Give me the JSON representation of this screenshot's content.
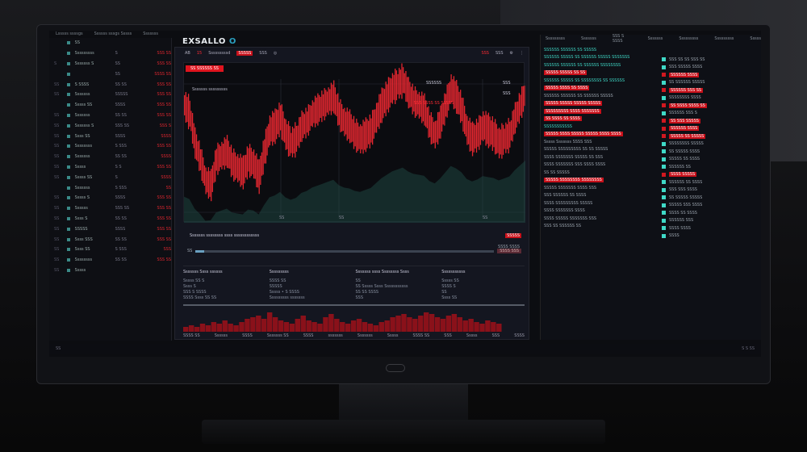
{
  "app": {
    "title": "EXSALLO",
    "title_mark": "O"
  },
  "topbar": [
    "Lsssss ssssgs",
    "Ssssss sssgs Sssss",
    "Sssssss"
  ],
  "toolbar": {
    "pair": "AB",
    "pair_change": "15",
    "mode": "Sssssssssd",
    "price_tag": "SSSSS",
    "interval": "SSS",
    "right1": "SSS",
    "right2": "SSS"
  },
  "chart": {
    "tag": "SS SSSSSS SS",
    "annotation": "Sssssss sssssssss",
    "legend": "SSSSSS",
    "legend_val": "SSS",
    "legend_red": "SSS SSSS  SS SSSSS",
    "price_label": "SSS",
    "accent": "#e0262f",
    "volume_color": "#1f4a44",
    "price_series": [
      96,
      92,
      78,
      70,
      60,
      58,
      70,
      72,
      74,
      68,
      66,
      64,
      70,
      68,
      62,
      74,
      84,
      86,
      90,
      82,
      78,
      80,
      86,
      88,
      92,
      94,
      96,
      98,
      100,
      92,
      88,
      86,
      82,
      80,
      82,
      84,
      90,
      96,
      100,
      104,
      106,
      108,
      102,
      98,
      96,
      94,
      86,
      82,
      88,
      96,
      104,
      100,
      94,
      84,
      80,
      82,
      86,
      84,
      82,
      78,
      80,
      82,
      90,
      96,
      102
    ],
    "x_ticks": [
      "SS",
      "SS",
      "SS"
    ]
  },
  "info": {
    "label": "Sssssss ssssssss ssss ssssssssssss",
    "badge": "SSSSS",
    "sub": "SSSS SSSS",
    "progress_pct": 3,
    "progress_label": "SS",
    "btn": "SSSS SSS"
  },
  "table": {
    "columns": [
      {
        "h": "Sssssss Ssss ssssss",
        "rows": [
          "Sssss  SS  S",
          "Ssss   S",
          "SSS S SSSS",
          "SSSS Ssss SS SS"
        ]
      },
      {
        "h": "Sssssssss",
        "rows": [
          "SSSS  SS",
          "SSSSS",
          "Sssss • S SSSS",
          "Sssssssss sssssss"
        ]
      },
      {
        "h": "Sssssss ssss Ssssssss Ssss",
        "rows": [
          "SS",
          "SS Sssss Ssss Sssssssssss",
          "SS SS SSSS",
          "SSS"
        ]
      },
      {
        "h": "Sssssssssss",
        "rows": [
          "Sssss  SS",
          "SSSS  S",
          "SS",
          "Ssss  SS"
        ]
      }
    ]
  },
  "volume": {
    "values": [
      3,
      4,
      3,
      5,
      4,
      6,
      5,
      7,
      5,
      4,
      6,
      8,
      9,
      10,
      8,
      12,
      9,
      7,
      6,
      5,
      8,
      10,
      7,
      6,
      5,
      9,
      11,
      8,
      6,
      5,
      7,
      8,
      6,
      5,
      4,
      6,
      7,
      9,
      10,
      11,
      9,
      8,
      10,
      12,
      11,
      9,
      8,
      10,
      11,
      9,
      7,
      8,
      6,
      5,
      7,
      6,
      5
    ],
    "labels": [
      "SSSS SS",
      "Ssssss",
      "SSSS",
      "Sssssss SS",
      "SSSS",
      "sssssss",
      "Sssssss",
      "Sssss",
      "SSSS SS",
      "SSS",
      "Sssss",
      "SSS",
      "SSSS"
    ]
  },
  "sidebar": {
    "rows": [
      {
        "n": "",
        "label": "SS",
        "v": "",
        "r": ""
      },
      {
        "n": "",
        "label": "Sssssssss",
        "v": "S",
        "r": "SSS SS"
      },
      {
        "n": "S",
        "label": "Sssssss S",
        "v": "SS",
        "r": "SSS SS"
      },
      {
        "n": "",
        "label": "",
        "v": "SS",
        "r": "SSSS SS"
      },
      {
        "n": "SS",
        "label": "S SSSS",
        "v": "SS SS",
        "r": "SSS SS"
      },
      {
        "n": "SS",
        "label": "Sssssss",
        "v": "SSSSS",
        "r": "SSS SS"
      },
      {
        "n": "",
        "label": "Sssss SS",
        "v": "SSSS",
        "r": "SSS SS"
      },
      {
        "n": "SS",
        "label": "Sssssss",
        "v": "SS SS",
        "r": "SSS SS"
      },
      {
        "n": "SS",
        "label": "Sssssss S",
        "v": "SSS SS",
        "r": "SSS S"
      },
      {
        "n": "SS",
        "label": "Ssss SS",
        "v": "SSSS",
        "r": "SSSS"
      },
      {
        "n": "SS",
        "label": "Ssssssss",
        "v": "S SSS",
        "r": "SSS SS"
      },
      {
        "n": "SS",
        "label": "Sssssss",
        "v": "SS SS",
        "r": "SSSS"
      },
      {
        "n": "SS",
        "label": "Sssss",
        "v": "S S",
        "r": "SSS SS"
      },
      {
        "n": "SS",
        "label": "Sssss SS",
        "v": "S",
        "r": "SSSS"
      },
      {
        "n": "",
        "label": "Sssssss",
        "v": "S SSS",
        "r": "SS"
      },
      {
        "n": "SS",
        "label": "Sssss S",
        "v": "SSSS",
        "r": "SSS SS"
      },
      {
        "n": "SS",
        "label": "Ssssss",
        "v": "SSS SS",
        "r": "SSS SS"
      },
      {
        "n": "SS",
        "label": "Ssss S",
        "v": "SS SS",
        "r": "SSS SS"
      },
      {
        "n": "SS",
        "label": "SSSSS",
        "v": "SSSS",
        "r": "SSS SS"
      },
      {
        "n": "SS",
        "label": "Ssss SSS",
        "v": "SS SS",
        "r": "SSS SS"
      },
      {
        "n": "SS",
        "label": "Ssss SS",
        "v": "S SSS",
        "r": "SSS"
      },
      {
        "n": "SS",
        "label": "Ssssssss",
        "v": "SS SS",
        "r": "SSS SS"
      },
      {
        "n": "SS",
        "label": "Sssss",
        "v": "",
        "r": ""
      }
    ]
  },
  "right": {
    "header": [
      "Sssssssss",
      "Sssssss",
      "SSS S SSSS",
      "Sssssss",
      "Sssssssss",
      "Sssssssss",
      "Sssss"
    ],
    "left_lines": [
      {
        "t": "SSSSSS SSSSSS SS SSSSS",
        "c": "t"
      },
      {
        "t": "SSSSSS SSSSS SS SSSSSS SSSSS SSSSSSS",
        "c": "t"
      },
      {
        "t": "SSSSSS SSSSSS SS SSSSSS SSSSSSSS",
        "c": "t"
      },
      {
        "t": "SSSSS SSSSS SS SS",
        "c": "r"
      },
      {
        "t": "SSSSSS SSSSS SS SSSSSSSS SS SSSSSS",
        "c": "t"
      },
      {
        "t": "SSSSS SSSS SS SSSS",
        "c": "r"
      },
      {
        "t": "SSSSSS SSSSSS SS SSSSSS SSSSS",
        "c": ""
      },
      {
        "t": "SSSSS SSSSS SSSSS SSSSS",
        "c": "r"
      },
      {
        "t": "SSSSSSSSS SSSS SSSSSSS",
        "c": "r"
      },
      {
        "t": "SS SSSS SS SSSS",
        "c": "r"
      },
      {
        "t": "SSSSSSSSSSS",
        "c": "t"
      },
      {
        "t": "SSSSS SSSS SSSSS SSSSS SSSS SSSS",
        "c": "r"
      },
      {
        "t": "Sssss Sssssss  SSSS SSS",
        "c": ""
      },
      {
        "t": "SSSSS SSSSSSSSS SS SS SSSSS",
        "c": ""
      },
      {
        "t": "SSSS SSSSSSS SSSSS SS SSS",
        "c": ""
      },
      {
        "t": "SSSS SSSSSSS  SSS SSSS SSSS",
        "c": ""
      },
      {
        "t": "SS   SS SSSSS",
        "c": ""
      },
      {
        "t": "SSSSS  SSSSSSSS SSSSSSSS",
        "c": "r"
      },
      {
        "t": "SSSSS SSSSSSS SSSS  SSS",
        "c": ""
      },
      {
        "t": "SSS SSSSSS SS SSSS",
        "c": ""
      },
      {
        "t": "SSSS SSSSSSSSS SSSSS",
        "c": ""
      },
      {
        "t": "SSSS SSSSSSS  SSSS",
        "c": ""
      },
      {
        "t": "SSSS SSSSS SSSSSSS SSS",
        "c": ""
      },
      {
        "t": "SSS SS SSSSSS SS",
        "c": ""
      }
    ],
    "right_lines": [
      {
        "t": "SSS SS SS  SSS SS",
        "c": ""
      },
      {
        "t": "SSS SSSSS  SSSS",
        "c": ""
      },
      {
        "t": "SSSSSS  SSSS",
        "c": "r"
      },
      {
        "t": "SS SSSSSS  SSSSS",
        "c": ""
      },
      {
        "t": "SSSSSS  SSS SS",
        "c": "r"
      },
      {
        "t": "SSSSSSSS  SSSS",
        "c": ""
      },
      {
        "t": "SS SSSS  SSSS SS",
        "c": "r"
      },
      {
        "t": "SSSSSS  SSS S",
        "c": ""
      },
      {
        "t": "SS SSS  SSSSS",
        "c": "r"
      },
      {
        "t": "SSSSSS  SSSS",
        "c": "r"
      },
      {
        "t": "SSSSS SS  SSSSS",
        "c": "r"
      },
      {
        "t": "SSSSSSSS  SSSSS",
        "c": ""
      },
      {
        "t": "SS SSSSS  SSSS",
        "c": ""
      },
      {
        "t": "SSSSS SS  SSSS",
        "c": ""
      },
      {
        "t": "SSSSSS  SS",
        "c": ""
      },
      {
        "t": "SSSS  SSSSS",
        "c": "r"
      },
      {
        "t": "SSSSSS SS  SSSS",
        "c": ""
      },
      {
        "t": "SSS SSS  SSSS",
        "c": ""
      },
      {
        "t": "SS SSSSS  SSSSS",
        "c": ""
      },
      {
        "t": "SSSSS SSS  SSSS",
        "c": ""
      },
      {
        "t": "SSSS SS  SSSS",
        "c": ""
      },
      {
        "t": "SSSSSS  SSS",
        "c": ""
      },
      {
        "t": "SSSS  SSSS",
        "c": ""
      },
      {
        "t": "SSSS",
        "c": ""
      }
    ]
  },
  "status": {
    "left": "SS",
    "right": "S   S   SS"
  }
}
